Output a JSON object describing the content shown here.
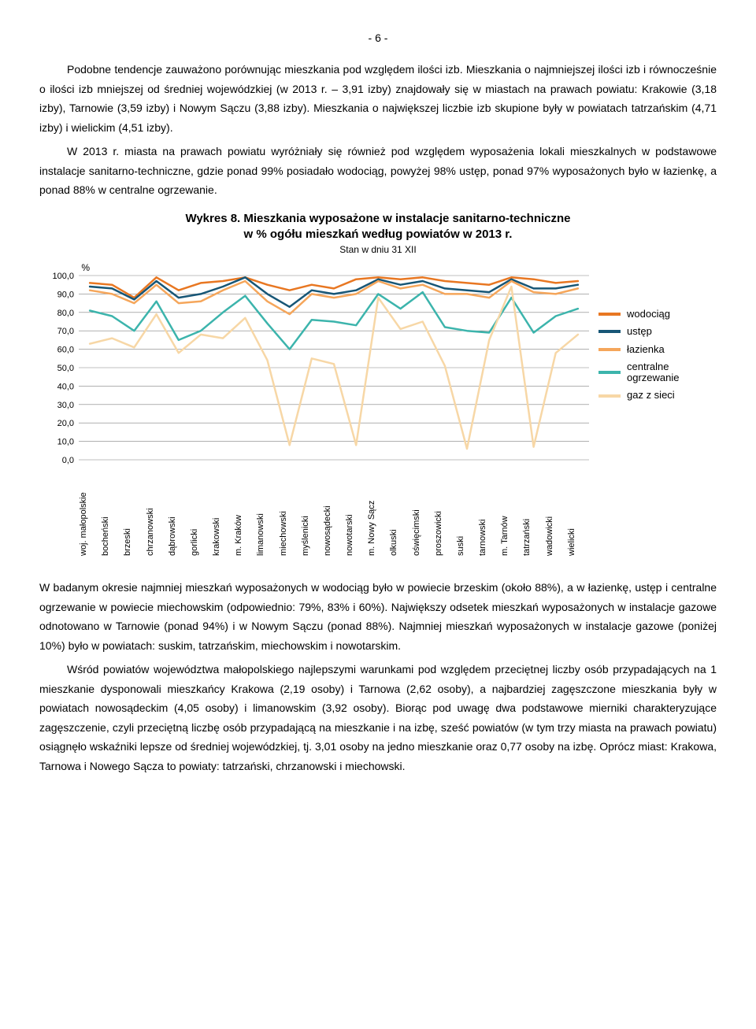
{
  "page_number": "- 6 -",
  "para1": "Podobne tendencje zauważono porównując mieszkania pod względem ilości izb. Mieszkania o najmniejszej ilości izb i równocześnie o ilości izb mniejszej od średniej wojewódzkiej (w 2013 r. – 3,91 izby) znajdowały się w miastach na prawach powiatu: Krakowie (3,18 izby), Tarnowie (3,59 izby) i Nowym Sączu (3,88 izby). Mieszkania o największej liczbie izb skupione były w powiatach tatrzańskim (4,71 izby) i wielickim (4,51 izby).",
  "para2": "W 2013 r. miasta na prawach powiatu wyróżniały się również pod względem wyposażenia lokali mieszkalnych w podstawowe instalacje sanitarno-techniczne, gdzie ponad 99% posiadało wodociąg, powyżej 98% ustęp, ponad 97% wyposażonych było w łazienkę, a ponad 88% w centralne ogrzewanie.",
  "para3": "W badanym okresie najmniej mieszkań wyposażonych w wodociąg było w powiecie brzeskim (około 88%), a w łazienkę, ustęp i centralne ogrzewanie w powiecie miechowskim (odpowiednio: 79%, 83% i 60%). Największy odsetek mieszkań wyposażonych w instalacje gazowe odnotowano w Tarnowie (ponad 94%) i w Nowym Sączu (ponad 88%). Najmniej mieszkań wyposażonych w instalacje gazowe (poniżej 10%) było w powiatach: suskim, tatrzańskim, miechowskim i nowotarskim.",
  "para4": "Wśród powiatów województwa małopolskiego najlepszymi warunkami pod względem przeciętnej liczby osób przypadających na 1 mieszkanie dysponowali mieszkańcy Krakowa (2,19 osoby) i Tarnowa (2,62 osoby), a najbardziej zagęszczone mieszkania były w powiatach nowosądeckim (4,05 osoby) i limanowskim (3,92 osoby). Biorąc pod uwagę dwa podstawowe mierniki charakteryzujące zagęszczenie, czyli przeciętną liczbę osób przypadającą na mieszkanie i na izbę, sześć powiatów (w tym trzy miasta na prawach powiatu) osiągnęło wskaźniki lepsze od średniej wojewódzkiej, tj. 3,01 osoby na jedno mieszkanie oraz 0,77 osoby na izbę. Oprócz miast: Krakowa, Tarnowa i Nowego Sącza to powiaty: tatrzański, chrzanowski i miechowski.",
  "chart": {
    "title_line1": "Wykres 8. Mieszkania wyposażone w instalacje sanitarno-techniczne",
    "title_line2": "w % ogółu mieszkań według powiatów w 2013 r.",
    "subtitle": "Stan w dniu 31 XII",
    "y_label": "%",
    "y_ticks": [
      "0,0",
      "10,0",
      "20,0",
      "30,0",
      "40,0",
      "50,0",
      "60,0",
      "70,0",
      "80,0",
      "90,0",
      "100,0"
    ],
    "ylim": [
      0,
      100
    ],
    "plot_bg": "#ffffff",
    "grid_color": "#808080",
    "grid_width": 0.6,
    "line_width": 2.5,
    "categories": [
      "woj. małopolskie",
      "bocheński",
      "brzeski",
      "chrzanowski",
      "dąbrowski",
      "gorlicki",
      "krakowski",
      "m. Kraków",
      "limanowski",
      "miechowski",
      "myślenicki",
      "nowosądecki",
      "nowotarski",
      "m. Nowy Sącz",
      "olkuski",
      "oświęcimski",
      "proszowicki",
      "suski",
      "tarnowski",
      "m. Tarnów",
      "tatrzański",
      "wadowicki",
      "wielicki"
    ],
    "series": [
      {
        "name": "wodociąg",
        "color": "#e87722",
        "values": [
          96,
          95,
          88,
          99,
          92,
          96,
          97,
          99,
          95,
          92,
          95,
          93,
          98,
          99,
          98,
          99,
          97,
          96,
          95,
          99,
          98,
          96,
          97
        ]
      },
      {
        "name": "ustęp",
        "color": "#175676",
        "values": [
          94,
          93,
          87,
          97,
          88,
          90,
          94,
          99,
          90,
          83,
          92,
          90,
          92,
          98,
          95,
          97,
          93,
          92,
          91,
          98,
          93,
          93,
          95
        ]
      },
      {
        "name": "łazienka",
        "color": "#f5a65b",
        "values": [
          92,
          90,
          85,
          95,
          85,
          86,
          92,
          97,
          86,
          79,
          90,
          88,
          90,
          97,
          93,
          95,
          90,
          90,
          88,
          97,
          91,
          90,
          93
        ]
      },
      {
        "name": "centralne ogrzewanie",
        "color": "#3cb4ac",
        "values": [
          81,
          78,
          70,
          86,
          65,
          70,
          80,
          89,
          74,
          60,
          76,
          75,
          73,
          90,
          82,
          91,
          72,
          70,
          69,
          88,
          69,
          78,
          82
        ]
      },
      {
        "name": "gaz z sieci",
        "color": "#f7d7a6",
        "values": [
          63,
          66,
          61,
          79,
          58,
          68,
          66,
          77,
          54,
          8,
          55,
          52,
          8,
          88,
          71,
          75,
          51,
          6,
          65,
          94,
          7,
          58,
          68
        ]
      }
    ],
    "legend": [
      {
        "label": "wodociąg",
        "color": "#e87722"
      },
      {
        "label": "ustęp",
        "color": "#175676"
      },
      {
        "label": "łazienka",
        "color": "#f5a65b"
      },
      {
        "label": "centralne ogrzewanie",
        "color": "#3cb4ac",
        "wrap": "centralne<br>ogrzewanie"
      },
      {
        "label": "gaz z sieci",
        "color": "#f7d7a6"
      }
    ]
  }
}
